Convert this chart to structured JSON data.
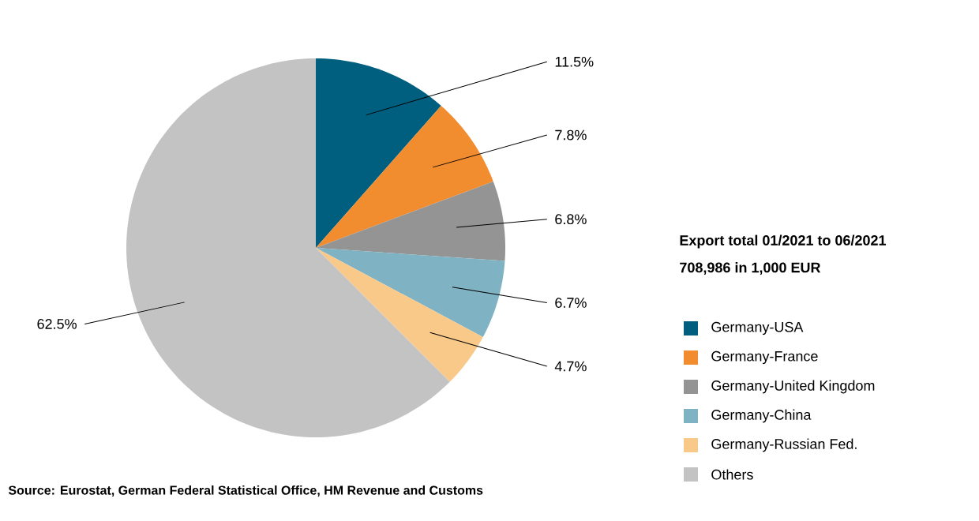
{
  "chart_data": {
    "type": "pie",
    "categories": [
      "Germany-USA",
      "Germany-France",
      "Germany-United Kingdom",
      "Germany-China",
      "Germany-Russian Fed.",
      "Others"
    ],
    "values": [
      11.5,
      7.8,
      6.8,
      6.7,
      4.7,
      62.5
    ],
    "colors": [
      "#005f7f",
      "#f18c2f",
      "#949494",
      "#7fb2c2",
      "#f9c98a",
      "#c3c3c3"
    ],
    "value_labels": [
      "11.5%",
      "7.8%",
      "6.8%",
      "6.7%",
      "4.7%",
      "62.5%"
    ],
    "legend_title": "Export total 01/2021 to 06/2021",
    "subtitle": "708,986 in 1,000 EUR",
    "legend": "right",
    "annotations": [
      "Source: Eurostat, German Federal Statistical Office, HM Revenue and Customs"
    ]
  }
}
